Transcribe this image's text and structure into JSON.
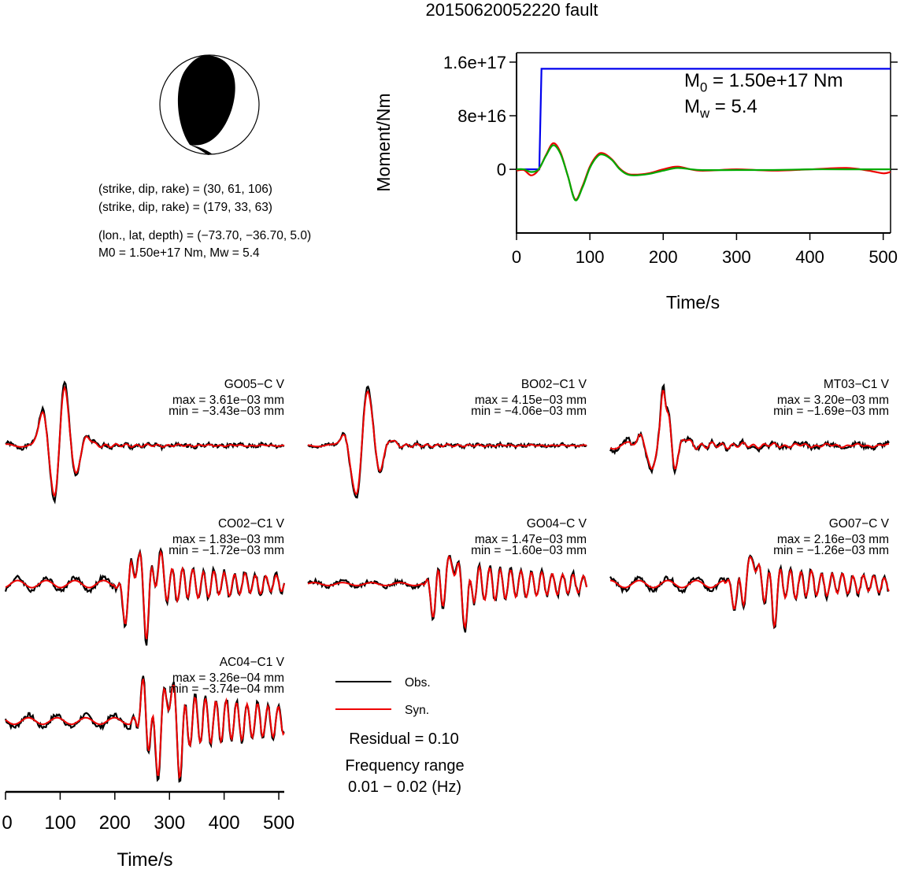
{
  "title": "20150620052220 fault",
  "mechanism": {
    "planes": [
      "(strike, dip, rake) = (30, 61, 106)",
      "(strike, dip, rake) = (179, 33, 63)"
    ],
    "location": "(lon., lat, depth) = (−73.70, −36.70, 5.0)",
    "moment_line": "M0 = 1.50e+17 Nm, Mw = 5.4",
    "colors": {
      "fill": "#000000",
      "background": "#ffffff"
    }
  },
  "chart_data": [
    {
      "type": "line",
      "id": "moment-function",
      "title": "",
      "xlabel": "Time/s",
      "ylabel": "Moment/Nm",
      "xlim": [
        0,
        510
      ],
      "ylim": [
        -9.5e+16,
        1.74e+17
      ],
      "xticks": [
        "0",
        "100",
        "200",
        "300",
        "400",
        "500"
      ],
      "xtick_values": [
        0,
        100,
        200,
        300,
        400,
        500
      ],
      "yticks": [
        "0",
        "8e+16",
        "1.6e+17"
      ],
      "ytick_values": [
        0,
        8e+16,
        1.6e+17
      ],
      "annotation": {
        "m0": "M0 = 1.50e+17 Nm",
        "mw": "Mw = 5.4"
      },
      "series": [
        {
          "color": "#0000ee",
          "x": [
            0,
            31,
            34,
            510
          ],
          "y": [
            0,
            0,
            1.5e+17,
            1.5e+17
          ]
        },
        {
          "color": "#ee0000",
          "x": [
            0,
            10,
            20,
            30,
            40,
            50,
            60,
            70,
            80,
            90,
            100,
            110,
            118,
            130,
            140,
            150,
            160,
            180,
            200,
            220,
            250,
            300,
            350,
            400,
            450,
            480,
            500,
            510
          ],
          "y": [
            -2000000000000000.0,
            -1000000000000000.0,
            -9000000000000000.0,
            -1000000000000000.0,
            2.1e+16,
            3.9e+16,
            2.5e+16,
            -1e+16,
            -4.5e+16,
            -2.5e+16,
            4000000000000000.0,
            2.1e+16,
            2.4e+16,
            1.5e+16,
            2000000000000000.0,
            -6000000000000000.0,
            -8000000000000000.0,
            -6000000000000000.0,
            0,
            4000000000000000.0,
            -2000000000000000.0,
            0,
            -2000000000000000.0,
            0,
            2000000000000000.0,
            -2000000000000000.0,
            -6000000000000000.0,
            -4000000000000000.0
          ]
        },
        {
          "color": "#00aa00",
          "x": [
            0,
            10,
            20,
            30,
            40,
            50,
            60,
            70,
            80,
            90,
            100,
            110,
            118,
            130,
            140,
            150,
            160,
            180,
            200,
            220,
            250,
            300,
            350,
            400,
            450,
            480,
            500,
            510
          ],
          "y": [
            0,
            0,
            -4000000000000000.0,
            0,
            2e+16,
            3.6e+16,
            2.3e+16,
            -1e+16,
            -4.6e+16,
            -2.7e+16,
            2000000000000000.0,
            1.9e+16,
            2.2e+16,
            1.4e+16,
            1000000000000000.0,
            -7000000000000000.0,
            -9000000000000000.0,
            -7000000000000000.0,
            -2000000000000000.0,
            2000000000000000.0,
            -1000000000000000.0,
            -1000000000000000.0,
            -1000000000000000.0,
            0,
            0,
            0,
            0,
            0
          ]
        }
      ]
    },
    {
      "type": "line",
      "id": "waveform-fits",
      "xlabel": "Time/s",
      "xlim": [
        0,
        510
      ],
      "xticks": [
        "0",
        "100",
        "200",
        "300",
        "400",
        "500"
      ],
      "xtick_values": [
        0,
        100,
        200,
        300,
        400,
        500
      ],
      "legend": {
        "position": "bottom-center",
        "obs": "Obs.",
        "syn": "Syn."
      },
      "colors": {
        "obs": "#000000",
        "syn": "#ee0000"
      },
      "residual": "Residual = 0.10",
      "freq_label": "Frequency range",
      "freq_range": "0.01 − 0.02 (Hz)",
      "stations": [
        {
          "name": "GO05−C V",
          "max": "max = 3.61e−03 mm",
          "min": "min = −3.43e−03 mm",
          "events": [
            [
              68,
              0.55,
              11
            ],
            [
              90,
              -1.0,
              10
            ],
            [
              108,
              1.0,
              12
            ],
            [
              127,
              -0.55,
              10
            ],
            [
              150,
              0.15,
              9
            ]
          ],
          "ripple": 0.05,
          "duration": 230,
          "noise": 0.06,
          "pre": 0.04,
          "seed": 1
        },
        {
          "name": "BO02−C1 V",
          "max": "max = 4.15e−03 mm",
          "min": "min = −4.06e−03 mm",
          "events": [
            [
              68,
              0.2,
              12
            ],
            [
              88,
              -0.9,
              12
            ],
            [
              110,
              1.0,
              12
            ],
            [
              130,
              -0.45,
              12
            ],
            [
              150,
              0.12,
              10
            ]
          ],
          "ripple": 0.05,
          "duration": 230,
          "noise": 0.05,
          "pre": 0.03,
          "seed": 2
        },
        {
          "name": "MT03−C1 V",
          "max": "max = 3.20e−03 mm",
          "min": "min = −1.69e−03 mm",
          "events": [
            [
              58,
              0.2,
              10
            ],
            [
              74,
              -0.45,
              9
            ],
            [
              97,
              0.95,
              6
            ],
            [
              107,
              0.5,
              6
            ],
            [
              118,
              -0.35,
              8
            ],
            [
              138,
              0.12,
              8
            ]
          ],
          "ripple": 0.08,
          "duration": 240,
          "noise": 0.07,
          "pre": 0.1,
          "seed": 3
        },
        {
          "name": "CO02−C1 V",
          "max": "max = 1.83e−03 mm",
          "min": "min = −1.72e−03 mm",
          "events": [
            [
              218,
              -0.5,
              8
            ],
            [
              240,
              0.6,
              7
            ],
            [
              258,
              -0.7,
              6
            ],
            [
              280,
              0.45,
              7
            ]
          ],
          "ripple": 0.5,
          "duration": 260,
          "noise": 0.08,
          "pre": 0.12,
          "seed": 4
        },
        {
          "name": "GO04−C V",
          "max": "max = 1.47e−03 mm",
          "min": "min = −1.60e−03 mm",
          "events": [
            [
              230,
              -0.4,
              8
            ],
            [
              265,
              0.65,
              6
            ],
            [
              290,
              -0.7,
              6
            ]
          ],
          "ripple": 0.5,
          "duration": 280,
          "noise": 0.08,
          "pre": 0.05,
          "seed": 5
        },
        {
          "name": "GO07−C V",
          "max": "max = 2.16e−03 mm",
          "min": "min = −1.26e−03 mm",
          "events": [
            [
              230,
              -0.35,
              8
            ],
            [
              262,
              0.7,
              6
            ],
            [
              300,
              -0.55,
              6
            ]
          ],
          "ripple": 0.45,
          "duration": 260,
          "noise": 0.08,
          "pre": 0.12,
          "seed": 6
        },
        {
          "name": "AC04−C1 V",
          "max": "max = 3.26e−04 mm",
          "min": "min = −3.74e−04 mm",
          "events": [
            [
              250,
              0.35,
              8
            ],
            [
              275,
              -0.65,
              8
            ],
            [
              300,
              0.7,
              7
            ],
            [
              320,
              -0.6,
              7
            ]
          ],
          "ripple": 0.62,
          "duration": 320,
          "noise": 0.08,
          "pre": 0.1,
          "seed": 7
        }
      ]
    }
  ]
}
